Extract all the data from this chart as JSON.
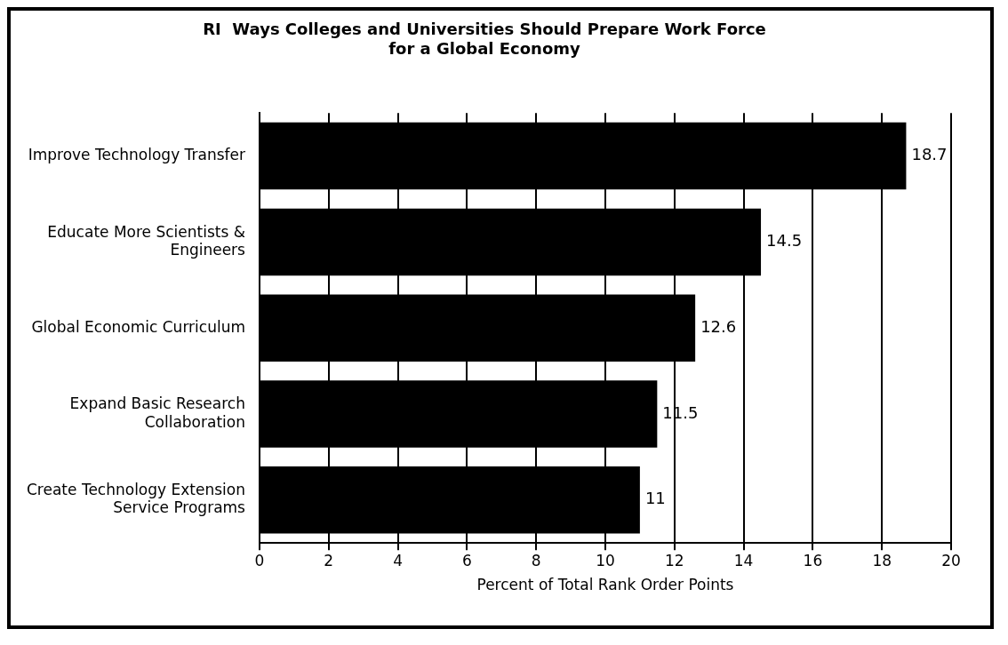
{
  "chart_data": {
    "type": "bar",
    "orientation": "horizontal",
    "title": "RI  Ways Colleges and Universities Should Prepare Work Force for a Global Economy",
    "xlabel": "Percent of Total Rank Order Points",
    "categories": [
      "Improve Technology Transfer",
      "Educate More Scientists & Engineers",
      "Global Economic Curriculum",
      "Expand Basic Research Collaboration",
      "Create Technology Extension Service Programs"
    ],
    "values": [
      18.7,
      14.5,
      12.6,
      11.5,
      11
    ],
    "color": "#000000",
    "xlim": [
      0,
      20
    ],
    "xticks": [
      0,
      2,
      4,
      6,
      8,
      10,
      12,
      14,
      16,
      18,
      20
    ],
    "grid": "x",
    "data_labels": true
  }
}
